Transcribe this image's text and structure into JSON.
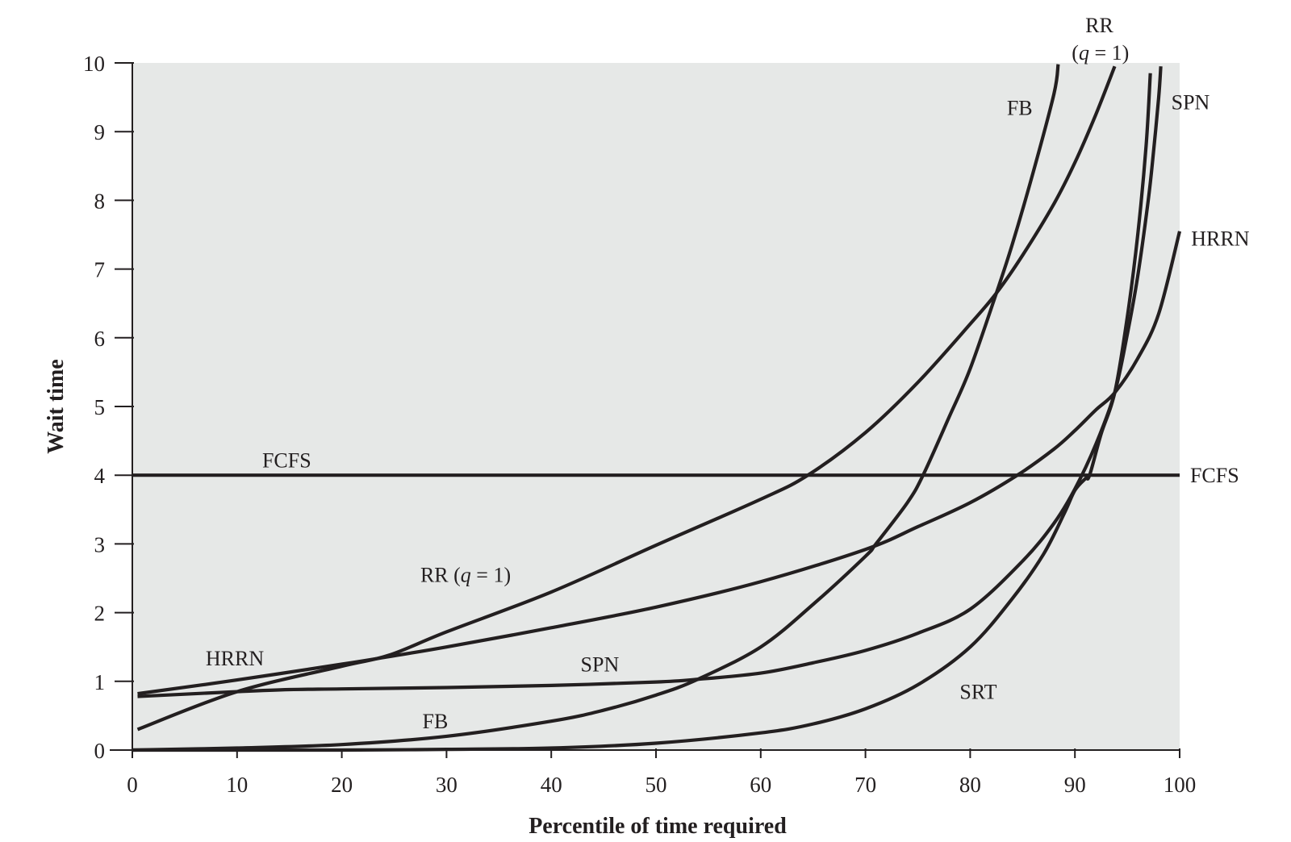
{
  "chart_data": {
    "type": "line",
    "xlabel": "Percentile of time required",
    "ylabel": "Wait time",
    "xlim": [
      0,
      100
    ],
    "ylim": [
      0,
      10
    ],
    "xticks": [
      "0",
      "10",
      "20",
      "30",
      "40",
      "50",
      "60",
      "70",
      "80",
      "90",
      "100"
    ],
    "yticks": [
      "0",
      "1",
      "2",
      "3",
      "4",
      "5",
      "6",
      "7",
      "8",
      "9",
      "10"
    ],
    "background": "#e6e8e7",
    "line_color": "#231f20",
    "series": [
      {
        "key": "fcfs",
        "x": [
          0,
          100
        ],
        "y": [
          4.0,
          4.0
        ]
      },
      {
        "key": "rr",
        "x": [
          0.5,
          10,
          20,
          24.5,
          30,
          40,
          50,
          60,
          64.5,
          70,
          75,
          80,
          82.5,
          85,
          88,
          90,
          92,
          93.8
        ],
        "y": [
          0.3,
          0.85,
          1.22,
          1.38,
          1.72,
          2.3,
          2.98,
          3.65,
          4.0,
          4.62,
          5.35,
          6.2,
          6.65,
          7.2,
          7.95,
          8.55,
          9.25,
          9.95
        ]
      },
      {
        "key": "hrrn",
        "x": [
          0.5,
          10,
          20,
          24.5,
          30,
          40,
          50,
          60,
          70,
          75,
          80,
          84.5,
          88,
          90,
          92,
          93.8,
          96,
          98,
          100
        ],
        "y": [
          0.82,
          1.02,
          1.25,
          1.36,
          1.5,
          1.78,
          2.08,
          2.45,
          2.92,
          3.25,
          3.6,
          4.0,
          4.38,
          4.65,
          4.95,
          5.2,
          5.7,
          6.35,
          7.55
        ]
      },
      {
        "key": "spn",
        "x": [
          0.5,
          10,
          15,
          20,
          30,
          40,
          50,
          54,
          60,
          65,
          70,
          75,
          80,
          85,
          88,
          90,
          92,
          93.8,
          95,
          96,
          97,
          97.5,
          98,
          98.2
        ],
        "y": [
          0.78,
          0.85,
          0.88,
          0.89,
          0.91,
          0.94,
          0.99,
          1.03,
          1.12,
          1.27,
          1.45,
          1.7,
          2.05,
          2.75,
          3.3,
          3.8,
          4.45,
          5.2,
          6.05,
          6.9,
          8.0,
          8.7,
          9.5,
          9.95
        ]
      },
      {
        "key": "fb",
        "x": [
          0,
          10,
          20,
          30,
          40,
          45,
          50,
          54,
          60,
          65,
          70,
          71,
          74,
          75.5,
          78,
          80,
          82.5,
          84,
          86,
          88,
          88.4
        ],
        "y": [
          0.0,
          0.03,
          0.08,
          0.2,
          0.42,
          0.58,
          0.8,
          1.03,
          1.5,
          2.12,
          2.82,
          3.0,
          3.6,
          4.0,
          4.85,
          5.55,
          6.65,
          7.35,
          8.4,
          9.55,
          9.98
        ]
      },
      {
        "key": "srt",
        "x": [
          0,
          20,
          30,
          40,
          50,
          60,
          65,
          70,
          75,
          80,
          84,
          87,
          89,
          90,
          91,
          91.4,
          92.5,
          93.8,
          95,
          96,
          96.8,
          97.2
        ],
        "y": [
          0.0,
          0.0,
          0.01,
          0.03,
          0.1,
          0.25,
          0.38,
          0.6,
          0.95,
          1.5,
          2.2,
          2.85,
          3.45,
          3.78,
          3.95,
          4.0,
          4.6,
          5.2,
          6.3,
          7.5,
          8.8,
          9.85
        ]
      }
    ],
    "annotations": [
      {
        "key": "fcfs-left",
        "parts": [
          [
            "FCFS",
            ""
          ]
        ],
        "x": 12.4,
        "y": 4.22
      },
      {
        "key": "fcfs-right",
        "parts": [
          [
            "FCFS",
            ""
          ]
        ],
        "x": 101,
        "y": 4.0
      },
      {
        "key": "rr-mid",
        "parts": [
          [
            "RR (",
            ""
          ],
          [
            "q",
            "it"
          ],
          [
            " = 1)",
            ""
          ]
        ],
        "x": 27.5,
        "y": 2.55
      },
      {
        "key": "hrrn-left",
        "parts": [
          [
            "HRRN",
            ""
          ]
        ],
        "x": 7.0,
        "y": 1.34
      },
      {
        "key": "hrrn-right",
        "parts": [
          [
            "HRRN",
            ""
          ]
        ],
        "x": 101.1,
        "y": 7.45
      },
      {
        "key": "spn-mid",
        "parts": [
          [
            "SPN",
            ""
          ]
        ],
        "x": 42.8,
        "y": 1.25
      },
      {
        "key": "spn-top",
        "parts": [
          [
            "SPN",
            ""
          ]
        ],
        "x": 99.2,
        "y": 9.43
      },
      {
        "key": "fb-low",
        "parts": [
          [
            "FB",
            ""
          ]
        ],
        "x": 27.7,
        "y": 0.42
      },
      {
        "key": "fb-top",
        "parts": [
          [
            "FB",
            ""
          ]
        ],
        "x": 83.5,
        "y": 9.35
      },
      {
        "key": "srt-low",
        "parts": [
          [
            "SRT",
            ""
          ]
        ],
        "x": 79.0,
        "y": 0.85
      },
      {
        "key": "rr-top-1",
        "parts": [
          [
            "RR",
            ""
          ]
        ],
        "x": 91.0,
        "y": 10.55
      },
      {
        "key": "rr-top-2",
        "parts": [
          [
            "(",
            ""
          ],
          [
            "q",
            "it"
          ],
          [
            " = 1)",
            ""
          ]
        ],
        "x": 89.7,
        "y": 10.15
      }
    ]
  }
}
